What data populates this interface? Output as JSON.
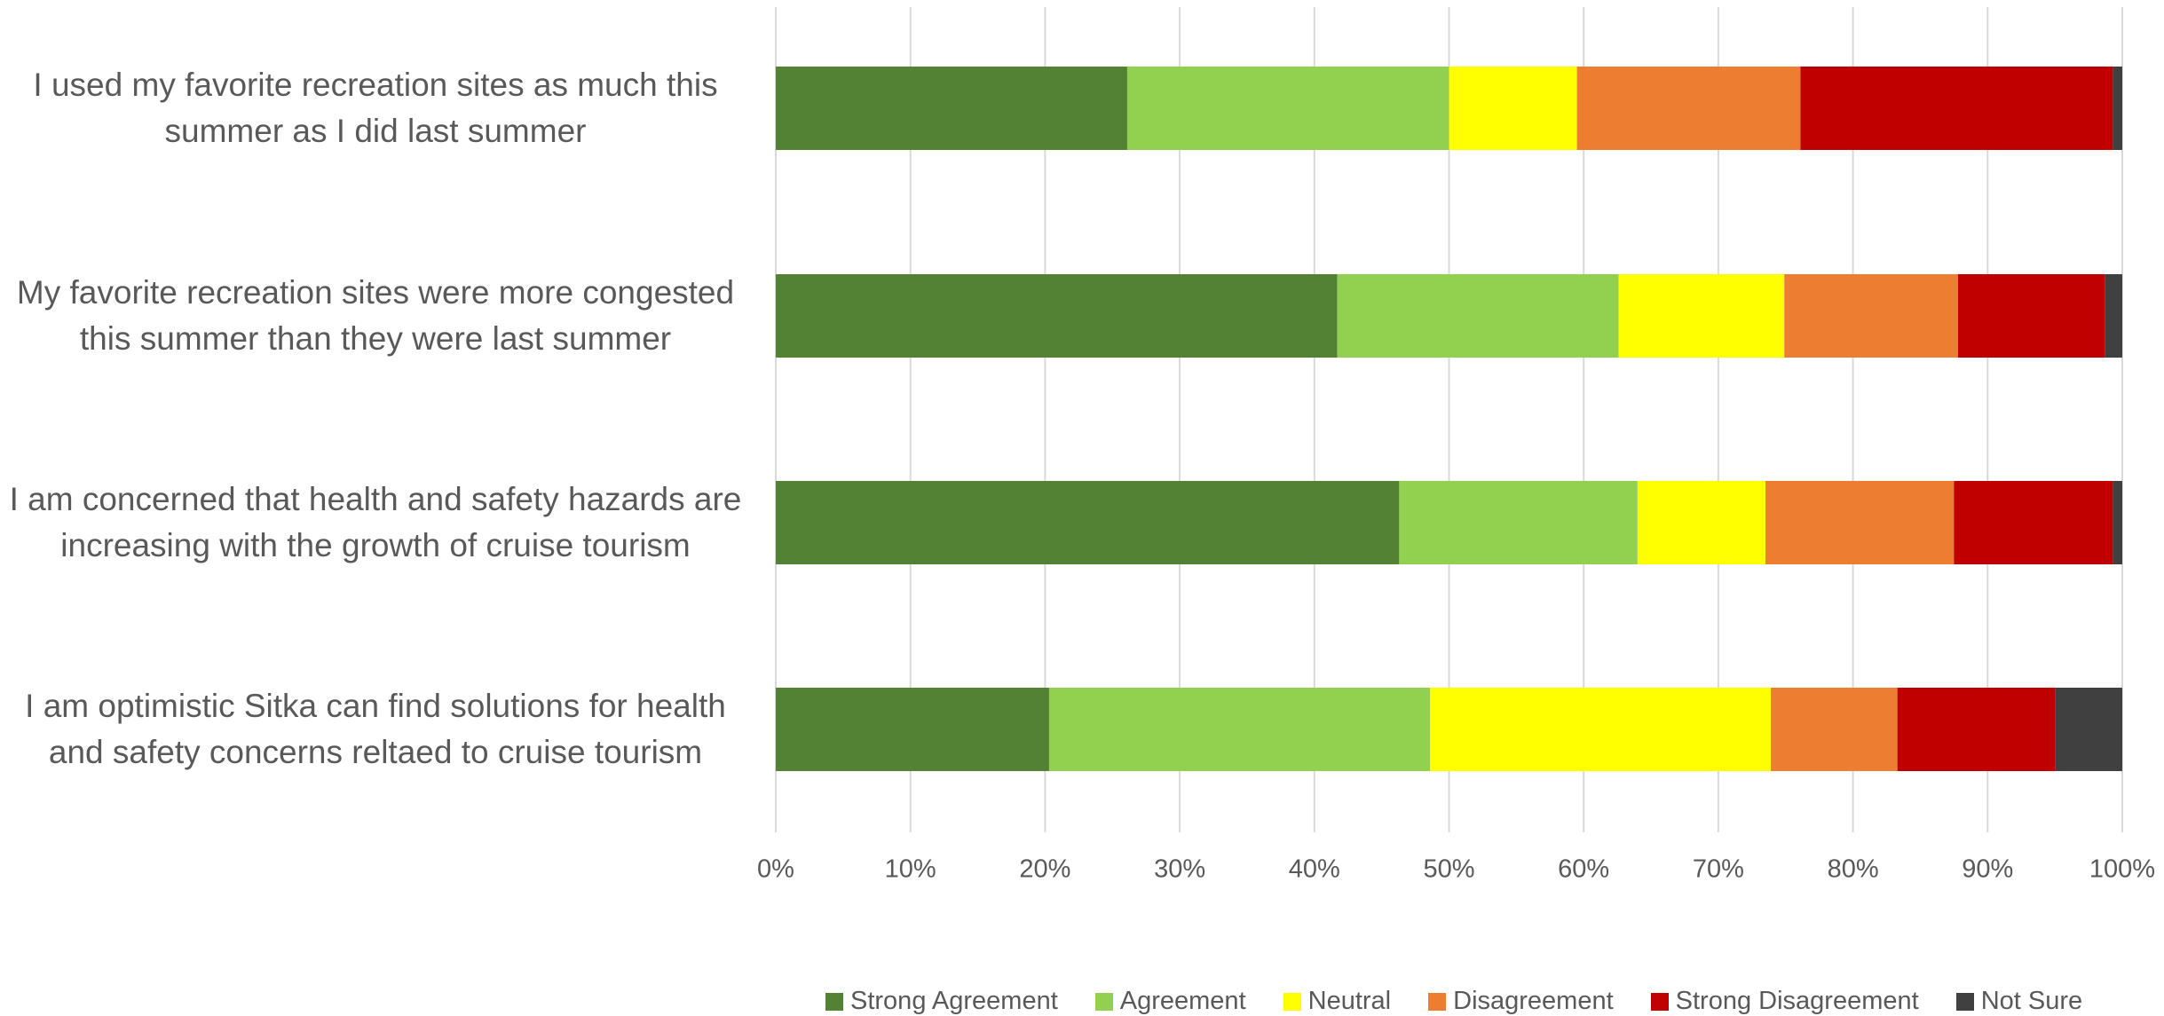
{
  "chart_data": {
    "type": "stacked-bar-horizontal",
    "categories": [
      "I used my favorite recreation sites as much this summer as I did last summer",
      "My favorite recreation sites were more congested this summer than they were last summer",
      "I am concerned that health and safety hazards are increasing with the growth of cruise tourism",
      "I am optimistic Sitka can find solutions for health and safety concerns reltaed to cruise tourism"
    ],
    "series": [
      {
        "name": "Strong Agreement",
        "color": "#548235",
        "values": [
          26.1,
          41.7,
          46.3,
          20.3
        ]
      },
      {
        "name": "Agreement",
        "color": "#92d050",
        "values": [
          23.9,
          20.9,
          17.7,
          28.3
        ]
      },
      {
        "name": "Neutral",
        "color": "#ffff00",
        "values": [
          9.5,
          12.3,
          9.5,
          25.3
        ]
      },
      {
        "name": "Disagreement",
        "color": "#ed7d31",
        "values": [
          16.6,
          12.9,
          14.0,
          9.4
        ]
      },
      {
        "name": "Strong Disagreement",
        "color": "#c00000",
        "values": [
          23.2,
          10.9,
          11.8,
          11.7
        ]
      },
      {
        "name": "Not Sure",
        "color": "#404040",
        "values": [
          0.7,
          1.3,
          0.7,
          5.0
        ]
      }
    ],
    "xlim": [
      0,
      100
    ],
    "xticks": [
      {
        "value": 0,
        "label": "0%"
      },
      {
        "value": 10,
        "label": "10%"
      },
      {
        "value": 20,
        "label": "20%"
      },
      {
        "value": 30,
        "label": "30%"
      },
      {
        "value": 40,
        "label": "40%"
      },
      {
        "value": 50,
        "label": "50%"
      },
      {
        "value": 60,
        "label": "60%"
      },
      {
        "value": 70,
        "label": "70%"
      },
      {
        "value": 80,
        "label": "80%"
      },
      {
        "value": 90,
        "label": "90%"
      },
      {
        "value": 100,
        "label": "100%"
      }
    ],
    "grid": true,
    "legend": "bottom"
  }
}
